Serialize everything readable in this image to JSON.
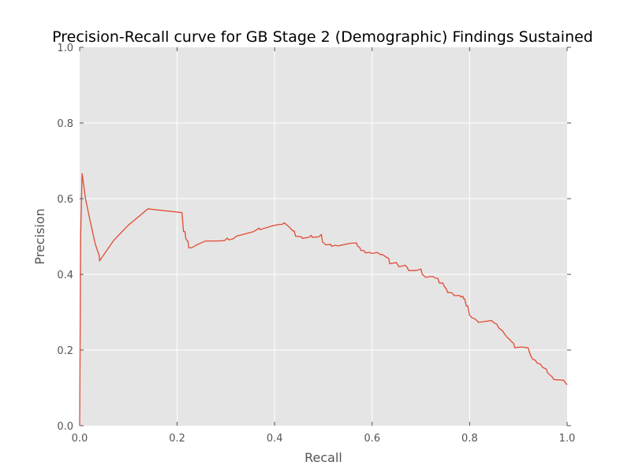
{
  "chart_data": {
    "type": "line",
    "title": "Precision-Recall curve for GB Stage 2 (Demographic) Findings Sustained",
    "xlabel": "Recall",
    "ylabel": "Precision",
    "xlim": [
      0.0,
      1.0
    ],
    "ylim": [
      0.0,
      1.0
    ],
    "x_ticks": [
      "0.0",
      "0.2",
      "0.4",
      "0.6",
      "0.8",
      "1.0"
    ],
    "y_ticks": [
      "0.0",
      "0.2",
      "0.4",
      "0.6",
      "0.8",
      "1.0"
    ],
    "grid": true,
    "background": "#e5e5e5",
    "series": [
      {
        "color": "#e24a33",
        "points": [
          [
            0.0,
            0.0
          ],
          [
            0.002,
            0.5
          ],
          [
            0.005,
            0.667
          ],
          [
            0.012,
            0.6
          ],
          [
            0.02,
            0.55
          ],
          [
            0.032,
            0.48
          ],
          [
            0.04,
            0.45
          ],
          [
            0.041,
            0.436
          ],
          [
            0.07,
            0.49
          ],
          [
            0.1,
            0.53
          ],
          [
            0.14,
            0.573
          ],
          [
            0.21,
            0.563
          ],
          [
            0.213,
            0.513
          ],
          [
            0.216,
            0.513
          ],
          [
            0.218,
            0.493
          ],
          [
            0.222,
            0.488
          ],
          [
            0.224,
            0.47
          ],
          [
            0.23,
            0.47
          ],
          [
            0.24,
            0.478
          ],
          [
            0.258,
            0.488
          ],
          [
            0.28,
            0.488
          ],
          [
            0.297,
            0.489
          ],
          [
            0.303,
            0.496
          ],
          [
            0.306,
            0.491
          ],
          [
            0.315,
            0.494
          ],
          [
            0.322,
            0.501
          ],
          [
            0.34,
            0.507
          ],
          [
            0.357,
            0.513
          ],
          [
            0.368,
            0.522
          ],
          [
            0.37,
            0.518
          ],
          [
            0.38,
            0.522
          ],
          [
            0.395,
            0.528
          ],
          [
            0.41,
            0.532
          ],
          [
            0.415,
            0.532
          ],
          [
            0.42,
            0.536
          ],
          [
            0.43,
            0.525
          ],
          [
            0.437,
            0.515
          ],
          [
            0.44,
            0.515
          ],
          [
            0.443,
            0.501
          ],
          [
            0.455,
            0.499
          ],
          [
            0.457,
            0.495
          ],
          [
            0.47,
            0.498
          ],
          [
            0.475,
            0.503
          ],
          [
            0.477,
            0.498
          ],
          [
            0.49,
            0.499
          ],
          [
            0.496,
            0.505
          ],
          [
            0.498,
            0.486
          ],
          [
            0.505,
            0.478
          ],
          [
            0.515,
            0.479
          ],
          [
            0.517,
            0.474
          ],
          [
            0.525,
            0.477
          ],
          [
            0.53,
            0.475
          ],
          [
            0.54,
            0.478
          ],
          [
            0.555,
            0.482
          ],
          [
            0.568,
            0.483
          ],
          [
            0.57,
            0.475
          ],
          [
            0.575,
            0.47
          ],
          [
            0.577,
            0.463
          ],
          [
            0.583,
            0.463
          ],
          [
            0.586,
            0.457
          ],
          [
            0.595,
            0.458
          ],
          [
            0.6,
            0.455
          ],
          [
            0.61,
            0.458
          ],
          [
            0.618,
            0.452
          ],
          [
            0.622,
            0.452
          ],
          [
            0.628,
            0.446
          ],
          [
            0.634,
            0.442
          ],
          [
            0.636,
            0.428
          ],
          [
            0.65,
            0.431
          ],
          [
            0.655,
            0.42
          ],
          [
            0.668,
            0.424
          ],
          [
            0.672,
            0.418
          ],
          [
            0.675,
            0.41
          ],
          [
            0.69,
            0.41
          ],
          [
            0.7,
            0.414
          ],
          [
            0.703,
            0.4
          ],
          [
            0.71,
            0.392
          ],
          [
            0.718,
            0.394
          ],
          [
            0.725,
            0.394
          ],
          [
            0.73,
            0.39
          ],
          [
            0.735,
            0.389
          ],
          [
            0.738,
            0.377
          ],
          [
            0.745,
            0.377
          ],
          [
            0.748,
            0.368
          ],
          [
            0.752,
            0.362
          ],
          [
            0.755,
            0.352
          ],
          [
            0.76,
            0.352
          ],
          [
            0.765,
            0.35
          ],
          [
            0.768,
            0.344
          ],
          [
            0.78,
            0.344
          ],
          [
            0.782,
            0.34
          ],
          [
            0.786,
            0.342
          ],
          [
            0.788,
            0.335
          ],
          [
            0.79,
            0.335
          ],
          [
            0.793,
            0.317
          ],
          [
            0.796,
            0.317
          ],
          [
            0.8,
            0.292
          ],
          [
            0.805,
            0.285
          ],
          [
            0.81,
            0.283
          ],
          [
            0.815,
            0.278
          ],
          [
            0.818,
            0.273
          ],
          [
            0.845,
            0.278
          ],
          [
            0.85,
            0.272
          ],
          [
            0.856,
            0.268
          ],
          [
            0.86,
            0.258
          ],
          [
            0.868,
            0.25
          ],
          [
            0.872,
            0.242
          ],
          [
            0.876,
            0.235
          ],
          [
            0.882,
            0.228
          ],
          [
            0.886,
            0.222
          ],
          [
            0.89,
            0.218
          ],
          [
            0.893,
            0.206
          ],
          [
            0.905,
            0.208
          ],
          [
            0.92,
            0.206
          ],
          [
            0.923,
            0.193
          ],
          [
            0.926,
            0.183
          ],
          [
            0.93,
            0.175
          ],
          [
            0.935,
            0.173
          ],
          [
            0.938,
            0.166
          ],
          [
            0.945,
            0.163
          ],
          [
            0.95,
            0.154
          ],
          [
            0.957,
            0.15
          ],
          [
            0.96,
            0.14
          ],
          [
            0.965,
            0.134
          ],
          [
            0.97,
            0.128
          ],
          [
            0.973,
            0.122
          ],
          [
            0.993,
            0.12
          ],
          [
            0.996,
            0.114
          ],
          [
            1.0,
            0.108
          ]
        ]
      }
    ]
  }
}
